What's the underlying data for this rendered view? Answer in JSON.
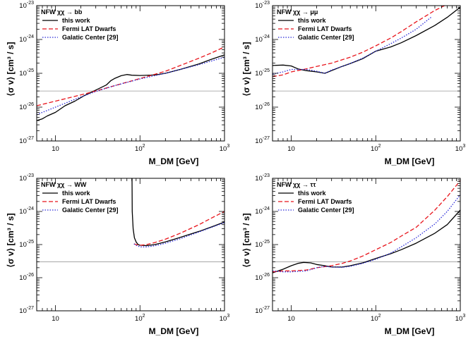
{
  "figure_colors": {
    "this_work": "#000000",
    "fermi": "#e8151c",
    "galactic": "#2a2ad8",
    "reference": "#999999"
  },
  "chart_data": [
    {
      "type": "line",
      "panel": "top-left",
      "channel_label": "NFW χχ → bb",
      "xlabel": "M_DM [GeV]",
      "ylabel": "⟨σ v⟩ [cm³ / s]",
      "xscale": "log",
      "yscale": "log",
      "xlim": [
        6,
        1000
      ],
      "ylim": [
        1e-27,
        1e-23
      ],
      "reference_line": 3e-26,
      "legend_position": "top-left",
      "series": [
        {
          "name": "this work",
          "style": "solid",
          "color": "#000000",
          "x": [
            6,
            7,
            8,
            10,
            13,
            17,
            22,
            30,
            40,
            45,
            50,
            60,
            70,
            80,
            100,
            150,
            200,
            300,
            500,
            700,
            1000
          ],
          "y": [
            4e-27,
            4.5e-27,
            5.5e-27,
            7e-27,
            1.1e-26,
            1.5e-26,
            2.2e-26,
            3.2e-26,
            4.5e-26,
            6e-26,
            7e-26,
            8.5e-26,
            9.2e-26,
            8.8e-26,
            8.6e-26,
            8.9e-26,
            1e-25,
            1.3e-25,
            1.9e-25,
            2.6e-25,
            3.5e-25
          ]
        },
        {
          "name": "Fermi LAT Dwarfs",
          "style": "dashed",
          "color": "#e8151c",
          "x": [
            6,
            10,
            20,
            30,
            50,
            100,
            200,
            300,
            500,
            700,
            1000
          ],
          "y": [
            1.1e-26,
            1.5e-26,
            2.3e-26,
            3e-26,
            4.3e-26,
            7e-26,
            1.15e-25,
            1.7e-25,
            2.8e-25,
            4e-25,
            6e-25
          ]
        },
        {
          "name": "Galatic Center [29]",
          "style": "dotted",
          "color": "#2a2ad8",
          "x": [
            6,
            8,
            10,
            15,
            20,
            30,
            50,
            100,
            200,
            300,
            500,
            700,
            1000
          ],
          "y": [
            6e-27,
            8e-27,
            1e-26,
            1.5e-26,
            2e-26,
            2.9e-26,
            4.3e-26,
            6.8e-26,
            1e-25,
            1.3e-25,
            1.8e-25,
            2.3e-25,
            3e-25
          ]
        }
      ]
    },
    {
      "type": "line",
      "panel": "top-right",
      "channel_label": "NFW χχ → μμ",
      "xlabel": "M_DM [GeV]",
      "ylabel": "⟨σ v⟩ [cm³ / s]",
      "xscale": "log",
      "yscale": "log",
      "xlim": [
        6,
        1000
      ],
      "ylim": [
        1e-27,
        1e-23
      ],
      "reference_line": 3e-26,
      "legend_position": "top-left",
      "series": [
        {
          "name": "this work",
          "style": "solid",
          "color": "#000000",
          "x": [
            6,
            8,
            10,
            12,
            15,
            20,
            25,
            30,
            40,
            50,
            70,
            100,
            150,
            200,
            300,
            500,
            700,
            1000
          ],
          "y": [
            1.7e-25,
            1.75e-25,
            1.65e-25,
            1.35e-25,
            1.2e-25,
            1.1e-25,
            1e-25,
            1.2e-25,
            1.6e-25,
            1.95e-25,
            2.7e-25,
            4.5e-25,
            6e-25,
            8e-25,
            1.3e-24,
            2.6e-24,
            4.5e-24,
            9e-24
          ]
        },
        {
          "name": "Fermi LAT Dwarfs",
          "style": "dashed",
          "color": "#e8151c",
          "x": [
            6,
            8,
            10,
            15,
            20,
            30,
            50,
            70,
            100,
            150,
            200,
            300,
            500,
            700
          ],
          "y": [
            8e-26,
            9e-26,
            1.1e-25,
            1.35e-25,
            1.6e-25,
            2e-25,
            3e-25,
            4.2e-25,
            6.5e-25,
            1.1e-24,
            1.7e-24,
            3.3e-24,
            7.2e-24,
            1.1e-23
          ]
        },
        {
          "name": "Galatic Center [29]",
          "style": "dotted",
          "color": "#2a2ad8",
          "x": [
            6,
            8,
            10,
            15,
            20,
            25,
            30,
            40,
            50,
            70,
            100,
            150,
            200,
            300,
            450
          ],
          "y": [
            9.5e-26,
            1.1e-25,
            1.3e-25,
            1.3e-25,
            1.15e-25,
            1e-25,
            1.25e-25,
            1.6e-25,
            1.95e-25,
            2.8e-25,
            4.5e-25,
            7.5e-25,
            1.1e-24,
            2e-24,
            4.5e-24
          ]
        }
      ]
    },
    {
      "type": "line",
      "panel": "bottom-left",
      "channel_label": "NFW χχ → WW",
      "xlabel": "M_DM [GeV]",
      "ylabel": "⟨σ v⟩ [cm³ / s]",
      "xscale": "log",
      "yscale": "log",
      "xlim": [
        6,
        1000
      ],
      "ylim": [
        1e-27,
        1e-23
      ],
      "reference_line": 3e-26,
      "legend_position": "top-left",
      "series": [
        {
          "name": "this work",
          "style": "solid",
          "color": "#000000",
          "x": [
            80.5,
            80.6,
            81,
            83,
            86,
            90,
            95,
            100,
            120,
            150,
            200,
            300,
            500,
            700,
            1000
          ],
          "y": [
            1e-23,
            5e-24,
            1e-24,
            3e-25,
            1.6e-25,
            1.2e-25,
            1e-25,
            9.5e-26,
            9.3e-26,
            1e-25,
            1.2e-25,
            1.65e-25,
            2.5e-25,
            3.4e-25,
            4.8e-25
          ]
        },
        {
          "name": "Fermi LAT Dwarfs",
          "style": "dashed",
          "color": "#e8151c",
          "x": [
            85,
            90,
            100,
            120,
            150,
            200,
            300,
            500,
            700,
            1000
          ],
          "y": [
            1.05e-25,
            1e-25,
            9.5e-26,
            1e-25,
            1.15e-25,
            1.45e-25,
            2.2e-25,
            4e-25,
            6.3e-25,
            1e-24
          ]
        },
        {
          "name": "Galatic Center [29]",
          "style": "dotted",
          "color": "#2a2ad8",
          "x": [
            85,
            90,
            100,
            120,
            150,
            200,
            300,
            500,
            700,
            1000
          ],
          "y": [
            1.05e-25,
            9.5e-26,
            8.5e-26,
            8.5e-26,
            9.2e-26,
            1.1e-25,
            1.5e-25,
            2.4e-25,
            3.3e-25,
            4.6e-25
          ]
        }
      ]
    },
    {
      "type": "line",
      "panel": "bottom-right",
      "channel_label": "NFW χχ → ττ",
      "xlabel": "M_DM [GeV]",
      "ylabel": "⟨σ v⟩ [cm³ / s]",
      "xscale": "log",
      "yscale": "log",
      "xlim": [
        6,
        1000
      ],
      "ylim": [
        1e-27,
        1e-23
      ],
      "reference_line": 3e-26,
      "legend_position": "top-left",
      "series": [
        {
          "name": "this work",
          "style": "solid",
          "color": "#000000",
          "x": [
            6,
            8,
            10,
            12,
            14,
            17,
            20,
            25,
            30,
            40,
            50,
            70,
            100,
            150,
            200,
            300,
            500,
            700,
            1000
          ],
          "y": [
            1.4e-26,
            1.8e-26,
            2.3e-26,
            2.7e-26,
            2.9e-26,
            2.8e-26,
            2.5e-26,
            2.3e-26,
            2.1e-26,
            2.1e-26,
            2.3e-26,
            2.8e-26,
            3.8e-26,
            5.3e-26,
            7e-26,
            1.1e-25,
            2.2e-25,
            4e-25,
            1.1e-24
          ]
        },
        {
          "name": "Fermi LAT Dwarfs",
          "style": "dashed",
          "color": "#e8151c",
          "x": [
            6,
            8,
            10,
            15,
            20,
            30,
            40,
            50,
            70,
            100,
            150,
            200,
            300,
            500,
            700,
            1000
          ],
          "y": [
            1.5e-26,
            1.6e-26,
            1.6e-26,
            1.7e-26,
            2e-26,
            2.3e-26,
            2.7e-26,
            3.2e-26,
            4.5e-26,
            7e-26,
            1.15e-25,
            1.8e-25,
            3.3e-25,
            1.1e-24,
            2.8e-24,
            8.5e-24
          ]
        },
        {
          "name": "Galatic Center [29]",
          "style": "dotted",
          "color": "#2a2ad8",
          "x": [
            6,
            8,
            10,
            15,
            20,
            25,
            30,
            40,
            50,
            70,
            100,
            150,
            200,
            300,
            500,
            700,
            1000
          ],
          "y": [
            1.6e-26,
            1.5e-26,
            1.5e-26,
            1.6e-26,
            2e-26,
            2.2e-26,
            2.1e-26,
            2.05e-26,
            2.2e-26,
            2.7e-26,
            3.6e-26,
            5.5e-26,
            8.5e-26,
            1.6e-25,
            4.2e-25,
            1e-24,
            3.2e-24
          ]
        }
      ]
    }
  ]
}
